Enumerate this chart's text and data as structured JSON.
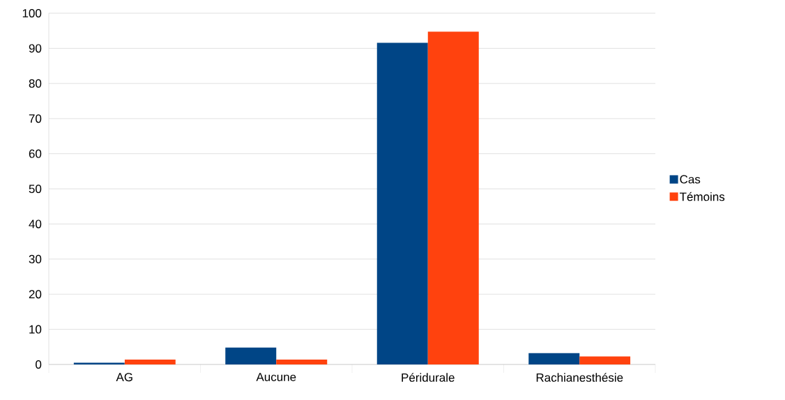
{
  "chart_data": {
    "type": "bar",
    "categories": [
      "AG",
      "Aucune",
      "Péridurale",
      "Rachianesthésie"
    ],
    "series": [
      {
        "name": "Cas",
        "color": "#004586",
        "values": [
          0.5,
          4.8,
          91.6,
          3.2
        ]
      },
      {
        "name": "Témoins",
        "color": "#ff420e",
        "values": [
          1.4,
          1.4,
          94.8,
          2.3
        ]
      }
    ],
    "ylim": [
      0,
      100
    ],
    "yticks": [
      0,
      10,
      20,
      30,
      40,
      50,
      60,
      70,
      80,
      90,
      100
    ],
    "grid": "y",
    "legend": "right"
  }
}
